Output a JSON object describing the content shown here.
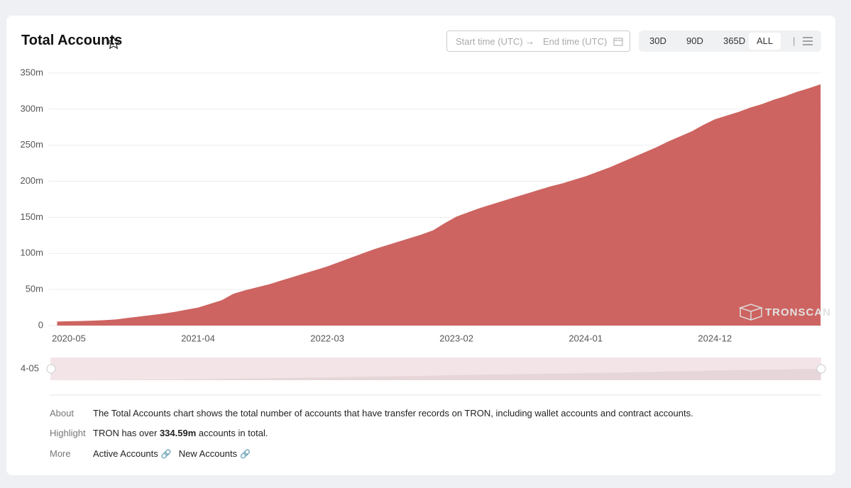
{
  "header": {
    "title": "Total Accounts",
    "start_placeholder": "Start time (UTC)",
    "end_placeholder": "End time (UTC)",
    "ranges": [
      "30D",
      "90D",
      "365D",
      "ALL"
    ]
  },
  "chart_data": {
    "type": "area",
    "color": "#cd6461",
    "grid": true,
    "watermark": "TRONSCAN",
    "categories": [
      null,
      "2020-05",
      null,
      null,
      null,
      null,
      null,
      null,
      null,
      null,
      null,
      null,
      "2021-04",
      null,
      null,
      null,
      null,
      null,
      null,
      null,
      null,
      null,
      null,
      "2022-03",
      null,
      null,
      null,
      null,
      null,
      null,
      null,
      null,
      null,
      null,
      "2023-02",
      null,
      null,
      null,
      null,
      null,
      null,
      null,
      null,
      null,
      null,
      "2024-01",
      null,
      null,
      null,
      null,
      null,
      null,
      null,
      null,
      null,
      null,
      "2024-12",
      null,
      null,
      null,
      null,
      null,
      null,
      null,
      null,
      null
    ],
    "values": [
      5.5,
      6,
      6.3,
      6.8,
      7.5,
      8.5,
      10.5,
      12.5,
      14.5,
      16.5,
      19,
      22,
      25,
      30,
      35,
      44,
      49,
      53,
      57,
      62,
      67,
      72,
      77,
      82,
      88,
      94,
      100,
      106,
      111,
      116,
      121,
      126,
      132,
      142,
      151,
      157,
      163,
      168,
      173,
      178,
      183,
      188,
      193,
      197,
      202,
      207,
      213,
      219,
      226,
      233,
      240,
      247,
      255,
      262,
      269,
      278,
      286,
      291,
      296,
      302,
      307,
      313,
      318,
      324,
      329,
      334.59
    ],
    "ylim": [
      0,
      350
    ],
    "yticks": [
      0,
      {
        "value": 50,
        "label": "50m"
      },
      {
        "value": 100,
        "label": "100m"
      },
      {
        "value": 150,
        "label": "150m"
      },
      {
        "value": 200,
        "label": "200m"
      },
      {
        "value": 250,
        "label": "250m"
      },
      {
        "value": 300,
        "label": "300m"
      },
      {
        "value": 350,
        "label": "350m"
      }
    ]
  },
  "slider": {
    "label": "4-05"
  },
  "info": {
    "about_label": "About",
    "about_text": "The Total Accounts chart shows the total number of accounts that have transfer records on TRON, including wallet accounts and contract accounts.",
    "highlight_label": "Highlight",
    "highlight_pre": "TRON has over",
    "highlight_value": "334.59m",
    "highlight_post": "accounts in total.",
    "more_label": "More",
    "links": [
      "Active Accounts",
      "New Accounts"
    ]
  }
}
